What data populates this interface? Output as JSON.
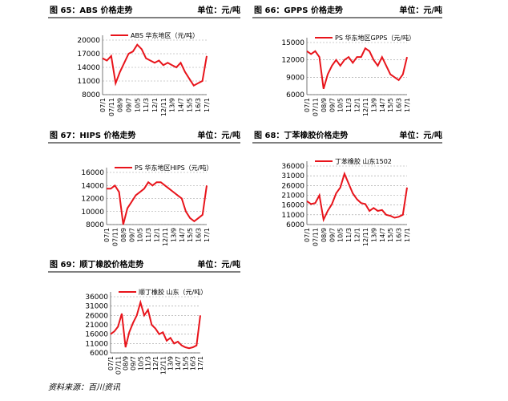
{
  "chart_data": [
    {
      "type": "line",
      "title": "图 65：ABS 价格走势",
      "unit": "单位：元/吨",
      "categories": [
        "07/1",
        null,
        "07/11",
        null,
        "08/9",
        null,
        "09/7",
        null,
        "10/5",
        null,
        "11/3",
        null,
        "12/1",
        null,
        "12/11",
        null,
        "13/9",
        null,
        "14/7",
        null,
        "15/5",
        null,
        "16/3",
        null,
        "17/1"
      ],
      "series": [
        {
          "name": "ABS 华东地区（元/吨）",
          "color": "#e8141b",
          "values": [
            16000,
            15500,
            16500,
            10500,
            13000,
            15000,
            17000,
            17500,
            19000,
            18000,
            16000,
            15500,
            15000,
            15500,
            14500,
            15000,
            14500,
            14000,
            15000,
            13000,
            11500,
            10000,
            10500,
            11000,
            16500
          ]
        }
      ],
      "ylim": [
        8000,
        20000
      ],
      "yticks": [
        8000,
        11000,
        14000,
        17000,
        20000
      ],
      "grid": true
    },
    {
      "type": "line",
      "title": "图 66：GPPS 价格走势",
      "unit": "单位：元/吨",
      "categories": [
        "07/1",
        null,
        "07/11",
        null,
        "08/9",
        null,
        "09/7",
        null,
        "10/5",
        null,
        "11/3",
        null,
        "12/1",
        null,
        "12/11",
        null,
        "13/9",
        null,
        "14/7",
        null,
        "15/5",
        null,
        "16/3",
        null,
        "17/1"
      ],
      "series": [
        {
          "name": "PS 华东地区GPPS（元/吨）",
          "color": "#e8141b",
          "values": [
            13500,
            13000,
            13500,
            12500,
            7000,
            9500,
            11000,
            12000,
            11000,
            12000,
            12500,
            11500,
            12500,
            12500,
            14000,
            13500,
            12000,
            11000,
            12500,
            11000,
            9500,
            9000,
            8500,
            9500,
            12500
          ]
        }
      ],
      "ylim": [
        6000,
        15000
      ],
      "yticks": [
        6000,
        9000,
        12000,
        15000
      ],
      "grid": true
    },
    {
      "type": "line",
      "title": "图 67：HIPS 价格走势",
      "unit": "单位：元/吨",
      "categories": [
        "07/1",
        null,
        "07/11",
        null,
        "08/9",
        null,
        "09/7",
        null,
        "10/5",
        null,
        "11/3",
        null,
        "12/1",
        null,
        "12/11",
        null,
        "13/9",
        null,
        "14/7",
        null,
        "15/5",
        null,
        "16/3",
        null,
        "17/1"
      ],
      "series": [
        {
          "name": "PS 华东地区HIPS（元/吨）",
          "color": "#e8141b",
          "values": [
            13500,
            13500,
            14000,
            13000,
            8000,
            10500,
            11500,
            12500,
            13000,
            13500,
            14500,
            14000,
            14500,
            14500,
            14000,
            13500,
            13000,
            12500,
            12000,
            10000,
            9000,
            8500,
            9000,
            9500,
            14000
          ]
        }
      ],
      "ylim": [
        8000,
        16000
      ],
      "yticks": [
        8000,
        10000,
        12000,
        14000,
        16000
      ],
      "grid": true
    },
    {
      "type": "line",
      "title": "图 68：丁苯橡胶价格走势",
      "unit": "单位：元/吨",
      "categories": [
        "07/1",
        null,
        "07/11",
        null,
        "08/9",
        null,
        "09/7",
        null,
        "10/5",
        null,
        "11/3",
        null,
        "12/1",
        null,
        "12/11",
        null,
        "13/9",
        null,
        "14/7",
        null,
        "15/5",
        null,
        "16/3",
        null,
        "17/1"
      ],
      "series": [
        {
          "name": "丁苯橡胶 山东1502",
          "color": "#e8141b",
          "values": [
            18000,
            16500,
            17000,
            21000,
            8500,
            13000,
            16500,
            22000,
            25000,
            32000,
            27000,
            22000,
            19000,
            17000,
            16500,
            13000,
            14500,
            13000,
            13500,
            11000,
            10500,
            9500,
            10000,
            11000,
            25000
          ]
        }
      ],
      "ylim": [
        6000,
        36000
      ],
      "yticks": [
        6000,
        11000,
        16000,
        21000,
        26000,
        31000,
        36000
      ],
      "grid": true
    },
    {
      "type": "line",
      "title": "图 69：顺丁橡胶价格走势",
      "unit": "单位：元/吨",
      "categories": [
        "07/1",
        null,
        "07/11",
        null,
        "08/9",
        null,
        "09/7",
        null,
        "10/5",
        null,
        "11/3",
        null,
        "12/1",
        null,
        "12/11",
        null,
        "13/9",
        null,
        "14/7",
        null,
        "15/5",
        null,
        "16/3",
        null,
        "17/1"
      ],
      "series": [
        {
          "name": "顺丁橡胶 山东（元/吨）",
          "color": "#e8141b",
          "values": [
            16000,
            17500,
            20000,
            27000,
            9000,
            17000,
            22000,
            26000,
            33000,
            26000,
            29000,
            21000,
            19000,
            16000,
            17000,
            12500,
            14000,
            11000,
            12000,
            10000,
            9000,
            8500,
            9000,
            10000,
            26000
          ]
        }
      ],
      "ylim": [
        6000,
        36000
      ],
      "yticks": [
        6000,
        11000,
        16000,
        21000,
        26000,
        31000,
        36000
      ],
      "grid": true
    }
  ],
  "source": "资料来源：百川资讯"
}
